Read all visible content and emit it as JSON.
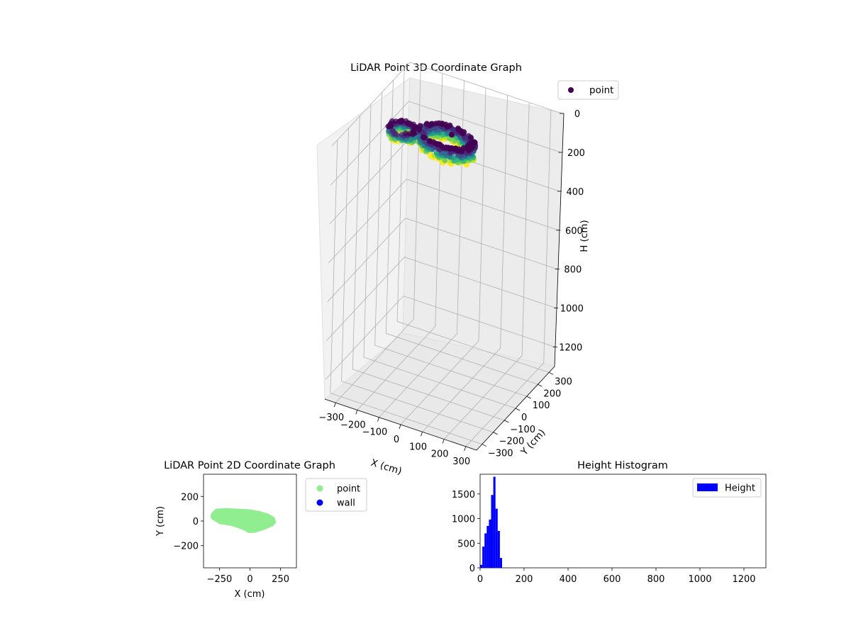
{
  "chart_data": [
    {
      "type": "scatter",
      "title": "LiDAR Point 3D Coordinate Graph",
      "xlabel": "X (cm)",
      "ylabel": "Y (cm)",
      "zlabel": "H (cm)",
      "x_ticks": [
        "−300",
        "−200",
        "−100",
        "0",
        "100",
        "200",
        "300"
      ],
      "y_ticks": [
        "−300",
        "−200",
        "−100",
        "0",
        "100",
        "200",
        "300"
      ],
      "z_ticks": [
        "0",
        "200",
        "400",
        "600",
        "800",
        "1000",
        "1200"
      ],
      "z_inverted": true,
      "colormap": "viridis",
      "legend": {
        "entries": [
          "point"
        ],
        "placement": "top-right outside",
        "color": "#440154"
      },
      "series": [
        {
          "name": "point",
          "clusters": [
            {
              "x_range": [
                -300,
                -100
              ],
              "y_range": [
                0,
                150
              ],
              "h_range": [
                0,
                90
              ]
            },
            {
              "x_range": [
                -100,
                200
              ],
              "y_range": [
                -100,
                100
              ],
              "h_range": [
                0,
                90
              ]
            }
          ]
        }
      ],
      "grid": true
    },
    {
      "type": "scatter",
      "title": "LiDAR Point 2D Coordinate Graph",
      "xlabel": "X (cm)",
      "ylabel": "Y (cm)",
      "x_ticks": [
        "−250",
        "0",
        "250"
      ],
      "y_ticks": [
        "−200",
        "0",
        "200"
      ],
      "xlim": [
        -380,
        380
      ],
      "ylim": [
        -380,
        380
      ],
      "legend": {
        "placement": "right outside"
      },
      "series": [
        {
          "name": "point",
          "color": "#90ee90",
          "outline": [
            [
              -320,
              60
            ],
            [
              -280,
              100
            ],
            [
              -200,
              105
            ],
            [
              -100,
              100
            ],
            [
              0,
              95
            ],
            [
              80,
              80
            ],
            [
              150,
              60
            ],
            [
              200,
              30
            ],
            [
              215,
              -10
            ],
            [
              190,
              -40
            ],
            [
              120,
              -70
            ],
            [
              40,
              -95
            ],
            [
              -10,
              -98
            ],
            [
              -60,
              -70
            ],
            [
              -150,
              -40
            ],
            [
              -250,
              -25
            ],
            [
              -320,
              20
            ]
          ]
        },
        {
          "name": "wall",
          "color": "#0000ff",
          "points": []
        }
      ],
      "grid": false
    },
    {
      "type": "bar",
      "title": "Height Histogram",
      "xlabel": "",
      "ylabel": "",
      "x_ticks": [
        "0",
        "200",
        "400",
        "600",
        "800",
        "1000",
        "1200"
      ],
      "y_ticks": [
        "0",
        "500",
        "1000",
        "1500"
      ],
      "xlim": [
        0,
        1300
      ],
      "ylim": [
        0,
        1900
      ],
      "bin_width": 10,
      "bin_starts": [
        0,
        10,
        20,
        30,
        40,
        50,
        60,
        70,
        80,
        90
      ],
      "values": [
        60,
        430,
        700,
        850,
        980,
        1480,
        1850,
        1200,
        750,
        200
      ],
      "legend": {
        "entries": [
          "Height"
        ],
        "placement": "top-right"
      },
      "series": [
        {
          "name": "Height",
          "color": "#0000ff"
        }
      ],
      "grid": false
    }
  ]
}
